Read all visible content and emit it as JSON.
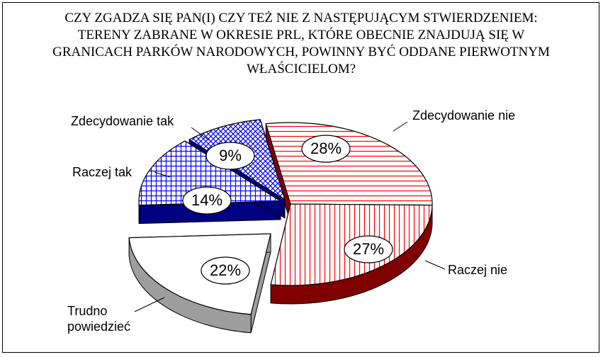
{
  "chart_data": {
    "type": "pie",
    "title": "CZY ZGADZA SIĘ PAN(I) CZY TEŻ NIE Z NASTĘPUJĄCYM STWIERDZENIEM: TERENY ZABRANE W OKRESIE PRL, KTÓRE OBECNIE ZNAJDUJĄ SIĘ W GRANICACH PARKÓW NARODOWYCH, POWINNY BYĆ ODDANE PIERWOTNYM WŁAŚCICIELOM?",
    "categories": [
      "Zdecydowanie nie",
      "Raczej nie",
      "Trudno powiedzieć",
      "Raczej tak",
      "Zdecydowanie tak"
    ],
    "values": [
      28,
      27,
      22,
      14,
      9
    ],
    "value_labels": [
      "28%",
      "27%",
      "22%",
      "14%",
      "9%"
    ],
    "colors": [
      "#ff0000",
      "#ff0000",
      "#ffffff",
      "#0000ff",
      "#0000ff"
    ]
  }
}
